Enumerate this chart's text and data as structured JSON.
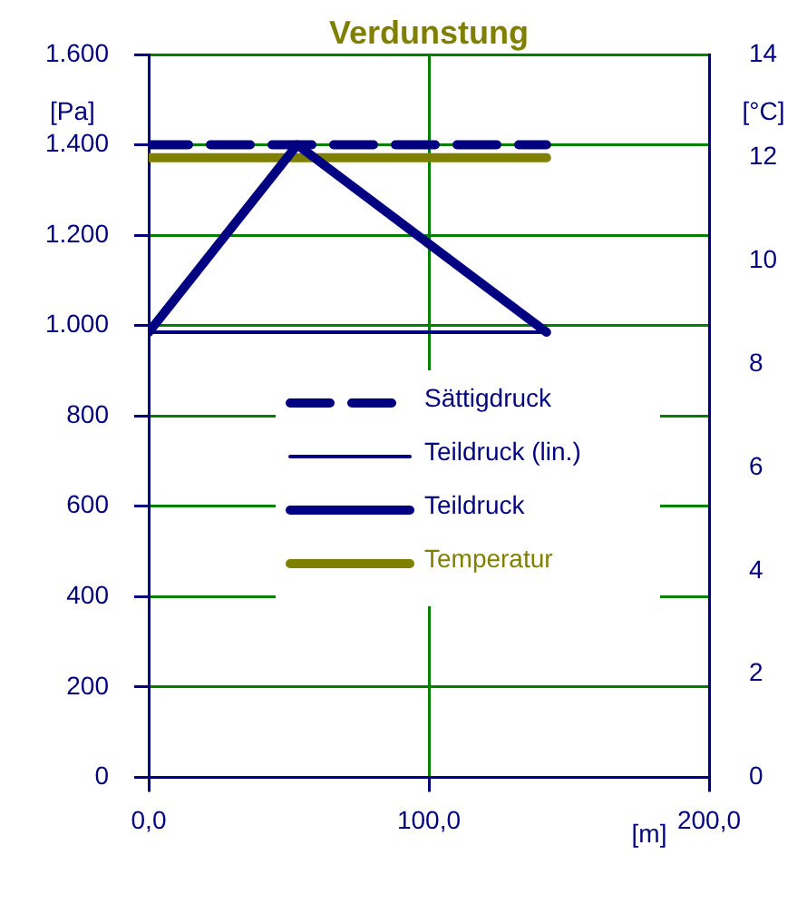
{
  "chart_data": {
    "type": "line",
    "title": "Verdunstung",
    "xlabel": "[m]",
    "ylabel": "[Pa]",
    "y2label": "[°C]",
    "xlim": [
      0,
      200
    ],
    "xticks": [
      {
        "value": 0,
        "label": "0,0"
      },
      {
        "value": 100,
        "label": "100,0"
      },
      {
        "value": 200,
        "label": "200,0"
      }
    ],
    "ylim": [
      0,
      1600
    ],
    "yticks": [
      0,
      200,
      400,
      600,
      800,
      {
        "value": 1000,
        "label": "1.000"
      },
      {
        "value": 1200,
        "label": "1.200"
      },
      {
        "value": 1400,
        "label": "1.400"
      },
      {
        "value": 1600,
        "label": "1.600"
      }
    ],
    "y2lim": [
      0,
      14
    ],
    "y2ticks": [
      0,
      2,
      4,
      6,
      8,
      10,
      12,
      14
    ],
    "grid": true,
    "legend": "center",
    "marker": "none",
    "series": [
      {
        "name": "Sättigdruck",
        "color": "#000080",
        "x": [
          0,
          142
        ],
        "values": [
          1400,
          1400
        ],
        "line_style": "dashed"
      },
      {
        "name": "Teildruck (lin.)",
        "color": "#000080",
        "x": [
          0,
          142
        ],
        "values": [
          985,
          985
        ],
        "line_style": "solid"
      },
      {
        "name": "Teildruck",
        "color": "#000080",
        "x": [
          0,
          53,
          142
        ],
        "values": [
          985,
          1400,
          985
        ],
        "line_style": "solid"
      },
      {
        "name": "Temperatur",
        "color": "#808000",
        "x": [
          0,
          142
        ],
        "values": [
          12,
          12
        ],
        "axis": "y2",
        "line_style": "solid"
      }
    ]
  }
}
